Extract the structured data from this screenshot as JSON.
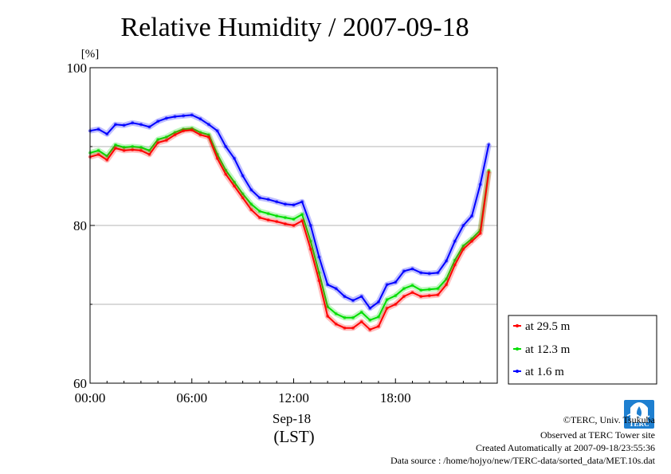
{
  "chart_data": {
    "type": "line",
    "title": "Relative Humidity / 2007-09-18",
    "ylabel": "[%]",
    "xlabel": "(LST)",
    "x_date_label": "Sep-18",
    "xlim": [
      0,
      24
    ],
    "ylim": [
      60,
      100
    ],
    "x_ticks": [
      {
        "value": 0,
        "label": "00:00"
      },
      {
        "value": 6,
        "label": "06:00"
      },
      {
        "value": 12,
        "label": "12:00"
      },
      {
        "value": 18,
        "label": "18:00"
      }
    ],
    "y_ticks": [
      {
        "value": 60,
        "label": "60"
      },
      {
        "value": 80,
        "label": "80"
      },
      {
        "value": 100,
        "label": "100"
      }
    ],
    "y_gridlines": [
      70,
      80,
      90
    ],
    "legend_position": "bottom-right, outside plot",
    "series": [
      {
        "name": "at 29.5 m",
        "color": "#ff0000",
        "x": [
          0,
          0.5,
          1,
          1.5,
          2,
          2.5,
          3,
          3.5,
          4,
          4.5,
          5,
          5.5,
          6,
          6.5,
          7,
          7.5,
          8,
          8.5,
          9,
          9.5,
          10,
          10.5,
          11,
          11.5,
          12,
          12.5,
          13,
          13.5,
          14,
          14.5,
          15,
          15.5,
          16,
          16.5,
          17,
          17.5,
          18,
          18.5,
          19,
          19.5,
          20,
          20.5,
          21,
          21.5,
          22,
          22.5,
          23,
          23.5
        ],
        "values": [
          88.7,
          89.0,
          88.3,
          89.8,
          89.5,
          89.6,
          89.5,
          89.0,
          90.5,
          90.8,
          91.5,
          92.0,
          92.1,
          91.5,
          91.2,
          88.5,
          86.5,
          85.0,
          83.5,
          82.0,
          81.0,
          80.7,
          80.5,
          80.2,
          80.0,
          80.6,
          77.0,
          73.0,
          68.5,
          67.5,
          67.0,
          67.0,
          67.8,
          66.8,
          67.2,
          69.5,
          70.0,
          71.0,
          71.5,
          71.0,
          71.1,
          71.2,
          72.5,
          75.0,
          77.0,
          78.0,
          79.0,
          86.8
        ]
      },
      {
        "name": "at 12.3 m",
        "color": "#00dd00",
        "x": [
          0,
          0.5,
          1,
          1.5,
          2,
          2.5,
          3,
          3.5,
          4,
          4.5,
          5,
          5.5,
          6,
          6.5,
          7,
          7.5,
          8,
          8.5,
          9,
          9.5,
          10,
          10.5,
          11,
          11.5,
          12,
          12.5,
          13,
          13.5,
          14,
          14.5,
          15,
          15.5,
          16,
          16.5,
          17,
          17.5,
          18,
          18.5,
          19,
          19.5,
          20,
          20.5,
          21,
          21.5,
          22,
          22.5,
          23,
          23.5
        ],
        "values": [
          89.2,
          89.5,
          88.8,
          90.2,
          89.9,
          90.0,
          89.9,
          89.5,
          90.9,
          91.2,
          91.8,
          92.2,
          92.3,
          91.8,
          91.5,
          89.0,
          87.0,
          85.5,
          84.0,
          82.7,
          81.8,
          81.5,
          81.2,
          81.0,
          80.8,
          81.4,
          78.0,
          74.0,
          69.7,
          68.8,
          68.3,
          68.3,
          69.0,
          68.0,
          68.4,
          70.6,
          71.1,
          72.0,
          72.4,
          71.8,
          71.9,
          72.0,
          73.2,
          75.6,
          77.4,
          78.3,
          79.4,
          87.0
        ]
      },
      {
        "name": "at 1.6 m",
        "color": "#0000ff",
        "x": [
          0,
          0.5,
          1,
          1.5,
          2,
          2.5,
          3,
          3.5,
          4,
          4.5,
          5,
          5.5,
          6,
          6.5,
          7,
          7.5,
          8,
          8.5,
          9,
          9.5,
          10,
          10.5,
          11,
          11.5,
          12,
          12.5,
          13,
          13.5,
          14,
          14.5,
          15,
          15.5,
          16,
          16.5,
          17,
          17.5,
          18,
          18.5,
          19,
          19.5,
          20,
          20.5,
          21,
          21.5,
          22,
          22.5,
          23,
          23.5
        ],
        "values": [
          92.0,
          92.2,
          91.6,
          92.8,
          92.7,
          93.0,
          92.8,
          92.5,
          93.2,
          93.6,
          93.8,
          93.9,
          94.0,
          93.5,
          92.8,
          92.0,
          90.0,
          88.5,
          86.3,
          84.5,
          83.5,
          83.3,
          83.0,
          82.7,
          82.6,
          83.0,
          80.0,
          76.0,
          72.5,
          72.0,
          71.0,
          70.5,
          71.0,
          69.5,
          70.3,
          72.5,
          72.8,
          74.2,
          74.5,
          74.0,
          73.9,
          74.0,
          75.5,
          78.0,
          80.0,
          81.2,
          85.2,
          90.3
        ]
      }
    ]
  },
  "footer": {
    "copyright": "©TERC, Univ. Tsukuba",
    "observed": "Observed at TERC Tower site",
    "created": "Created Automatically at 2007-09-18/23:55:36",
    "source": "Data source : /home/hojyo/new/TERC-data/sorted_data/MET.10s.dat"
  },
  "logo": {
    "text": "TERC"
  }
}
